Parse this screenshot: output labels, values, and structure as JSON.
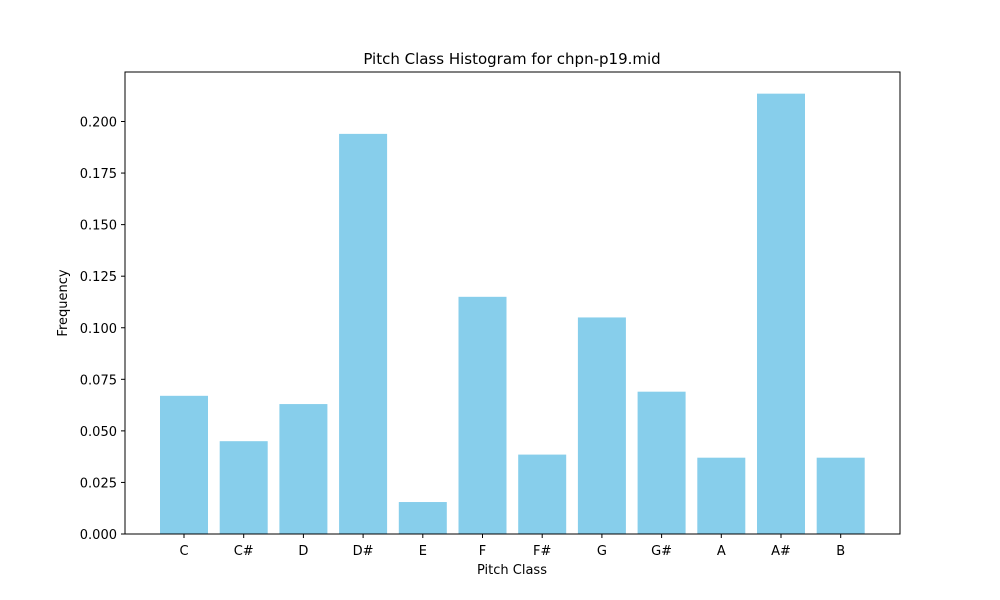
{
  "chart_data": {
    "type": "bar",
    "title": "Pitch Class Histogram for chpn-p19.mid",
    "xlabel": "Pitch Class",
    "ylabel": "Frequency",
    "categories": [
      "C",
      "C#",
      "D",
      "D#",
      "E",
      "F",
      "F#",
      "G",
      "G#",
      "A",
      "A#",
      "B"
    ],
    "values": [
      0.067,
      0.045,
      0.063,
      0.194,
      0.0155,
      0.115,
      0.0385,
      0.105,
      0.069,
      0.037,
      0.2135,
      0.037
    ],
    "ylim": [
      0,
      0.224
    ],
    "yticks": [
      "0.000",
      "0.025",
      "0.050",
      "0.075",
      "0.100",
      "0.125",
      "0.150",
      "0.175",
      "0.200"
    ],
    "bar_color": "#87CEEB",
    "grid": false,
    "legend": false
  }
}
